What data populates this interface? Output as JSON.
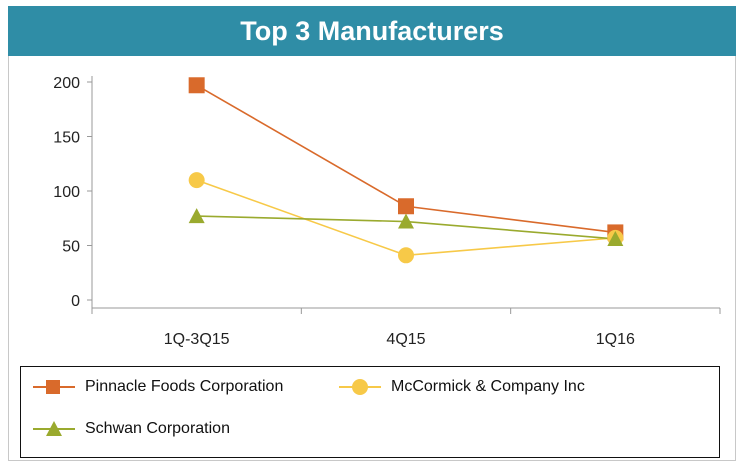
{
  "header": {
    "title": "Top 3 Manufacturers"
  },
  "chart_data": {
    "type": "line",
    "title": "Top 3 Manufacturers",
    "xlabel": "",
    "ylabel": "",
    "categories": [
      "1Q-3Q15",
      "4Q15",
      "1Q16"
    ],
    "ylim": [
      0,
      200
    ],
    "yticks": [
      0,
      50,
      100,
      150,
      200
    ],
    "series": [
      {
        "name": "Pinnacle Foods Corporation",
        "values": [
          197,
          86,
          62
        ],
        "color": "#d96a2b",
        "marker": "square"
      },
      {
        "name": "McCormick & Company Inc",
        "values": [
          110,
          41,
          57
        ],
        "color": "#f7c948",
        "marker": "circle"
      },
      {
        "name": "Schwan Corporation",
        "values": [
          77,
          72,
          56
        ],
        "color": "#9aaa2e",
        "marker": "triangle"
      }
    ],
    "grid": false,
    "legend": "bottom"
  }
}
